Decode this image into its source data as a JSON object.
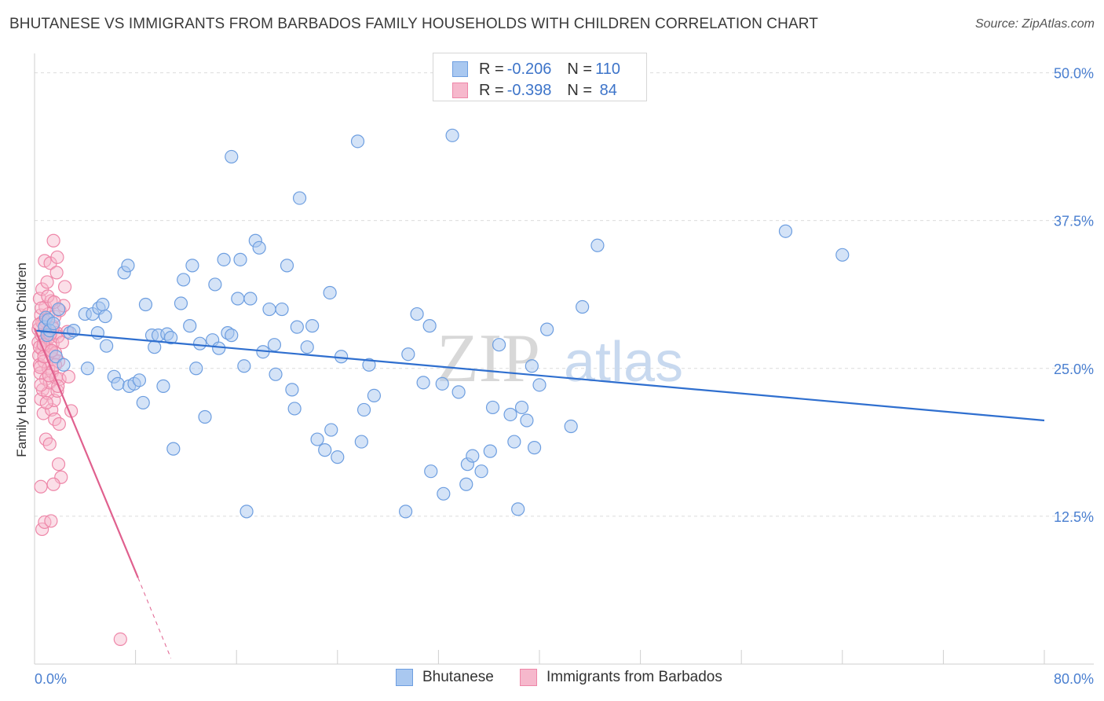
{
  "title": "BHUTANESE VS IMMIGRANTS FROM BARBADOS FAMILY HOUSEHOLDS WITH CHILDREN CORRELATION CHART",
  "source": "Source: ZipAtlas.com",
  "watermark": {
    "zip": "ZIP",
    "atlas": "atlas"
  },
  "colors": {
    "blue_fill": "#a9c8f0",
    "blue_stroke": "#6d9ee0",
    "blue_line": "#2f6fcf",
    "pink_fill": "#f6b8cc",
    "pink_stroke": "#ee86a8",
    "pink_line": "#e0608e",
    "grid": "#dcdcdc",
    "tick_text": "#4a7fd0"
  },
  "legend": {
    "rows": [
      {
        "r_label": "R = ",
        "r_value": "-0.206",
        "n_label": "N = ",
        "n_value": "110"
      },
      {
        "r_label": "R = ",
        "r_value": "-0.398",
        "n_label": "N = ",
        "n_value": " 84"
      }
    ]
  },
  "bottom_legend": {
    "series1": "Bhutanese",
    "series2": "Immigrants from Barbados"
  },
  "chart_data": {
    "type": "scatter",
    "title": "BHUTANESE VS IMMIGRANTS FROM BARBADOS FAMILY HOUSEHOLDS WITH CHILDREN CORRELATION CHART",
    "xlabel": "",
    "ylabel": "Family Households with Children",
    "xlim": [
      0,
      80
    ],
    "ylim": [
      0,
      51.5
    ],
    "x_tick_labels": [
      "0.0%",
      "80.0%"
    ],
    "y_ticks": [
      12.5,
      25.0,
      37.5,
      50.0
    ],
    "y_tick_labels": [
      "12.5%",
      "25.0%",
      "37.5%",
      "50.0%"
    ],
    "grid": "horizontal dashed",
    "series": [
      {
        "name": "Bhutanese",
        "R": -0.206,
        "N": 110,
        "trend": {
          "x0": 0,
          "y0": 28.2,
          "x1": 80,
          "y1": 20.6
        },
        "points": [
          [
            0.8,
            28.5
          ],
          [
            0.9,
            29.3
          ],
          [
            1.0,
            27.8
          ],
          [
            1.1,
            29.1
          ],
          [
            1.2,
            28.2
          ],
          [
            1.5,
            28.8
          ],
          [
            1.7,
            26.0
          ],
          [
            1.9,
            30.0
          ],
          [
            2.3,
            25.3
          ],
          [
            2.8,
            28.0
          ],
          [
            3.1,
            28.2
          ],
          [
            4.0,
            29.6
          ],
          [
            4.6,
            29.6
          ],
          [
            5.1,
            30.1
          ],
          [
            5.4,
            30.4
          ],
          [
            5.6,
            29.4
          ],
          [
            4.2,
            25.0
          ],
          [
            5.0,
            28.0
          ],
          [
            5.7,
            26.9
          ],
          [
            6.3,
            24.3
          ],
          [
            6.6,
            23.7
          ],
          [
            7.1,
            33.1
          ],
          [
            7.4,
            33.7
          ],
          [
            7.5,
            23.5
          ],
          [
            7.9,
            23.7
          ],
          [
            8.3,
            24.0
          ],
          [
            8.6,
            22.1
          ],
          [
            8.8,
            30.4
          ],
          [
            9.3,
            27.8
          ],
          [
            9.5,
            26.8
          ],
          [
            9.8,
            27.8
          ],
          [
            10.2,
            23.5
          ],
          [
            10.5,
            27.9
          ],
          [
            10.8,
            27.6
          ],
          [
            11.0,
            18.2
          ],
          [
            11.6,
            30.5
          ],
          [
            11.8,
            32.5
          ],
          [
            12.3,
            28.6
          ],
          [
            12.5,
            33.7
          ],
          [
            12.8,
            25.0
          ],
          [
            13.1,
            27.1
          ],
          [
            13.5,
            20.9
          ],
          [
            14.1,
            27.4
          ],
          [
            14.3,
            32.1
          ],
          [
            14.6,
            26.7
          ],
          [
            15.0,
            34.2
          ],
          [
            15.3,
            28.0
          ],
          [
            15.6,
            27.8
          ],
          [
            15.6,
            42.9
          ],
          [
            16.1,
            30.9
          ],
          [
            16.3,
            34.2
          ],
          [
            16.6,
            25.2
          ],
          [
            16.8,
            12.9
          ],
          [
            17.1,
            30.9
          ],
          [
            17.5,
            35.8
          ],
          [
            17.8,
            35.2
          ],
          [
            18.1,
            26.4
          ],
          [
            18.6,
            30.0
          ],
          [
            19.0,
            27.0
          ],
          [
            19.1,
            24.5
          ],
          [
            19.6,
            30.0
          ],
          [
            20.0,
            33.7
          ],
          [
            20.4,
            23.2
          ],
          [
            20.6,
            21.6
          ],
          [
            20.8,
            28.5
          ],
          [
            21.0,
            39.4
          ],
          [
            21.6,
            26.8
          ],
          [
            22.0,
            28.6
          ],
          [
            22.4,
            19.0
          ],
          [
            23.0,
            18.1
          ],
          [
            23.4,
            31.4
          ],
          [
            23.5,
            19.8
          ],
          [
            24.0,
            17.5
          ],
          [
            24.3,
            26.0
          ],
          [
            25.6,
            44.2
          ],
          [
            25.9,
            18.8
          ],
          [
            26.1,
            21.5
          ],
          [
            26.5,
            25.3
          ],
          [
            26.9,
            22.7
          ],
          [
            29.4,
            12.9
          ],
          [
            29.6,
            26.2
          ],
          [
            30.3,
            29.6
          ],
          [
            30.8,
            23.8
          ],
          [
            31.3,
            28.6
          ],
          [
            31.4,
            16.3
          ],
          [
            32.3,
            23.7
          ],
          [
            32.4,
            14.4
          ],
          [
            33.1,
            44.7
          ],
          [
            33.6,
            23.0
          ],
          [
            34.2,
            15.2
          ],
          [
            34.3,
            16.9
          ],
          [
            34.7,
            17.6
          ],
          [
            35.4,
            16.3
          ],
          [
            36.1,
            18.0
          ],
          [
            36.3,
            21.7
          ],
          [
            36.8,
            27.0
          ],
          [
            37.7,
            21.1
          ],
          [
            38.0,
            18.8
          ],
          [
            38.3,
            13.1
          ],
          [
            38.6,
            21.7
          ],
          [
            39.0,
            20.6
          ],
          [
            39.4,
            25.2
          ],
          [
            39.6,
            18.3
          ],
          [
            40.0,
            23.6
          ],
          [
            40.6,
            28.3
          ],
          [
            42.5,
            20.1
          ],
          [
            43.4,
            30.2
          ],
          [
            44.6,
            35.4
          ],
          [
            59.5,
            36.6
          ],
          [
            64.0,
            34.6
          ]
        ]
      },
      {
        "name": "Immigrants from Barbados",
        "R": -0.398,
        "N": 84,
        "trend": {
          "x0": 0,
          "y0": 28.4,
          "x1": 8.2,
          "y1": 7.3
        },
        "trend_dashed_extension": {
          "x0": 8.2,
          "y0": 7.3,
          "x1": 10.8,
          "y1": 0.5
        },
        "points": [
          [
            0.3,
            28.3
          ],
          [
            0.3,
            27.2
          ],
          [
            0.35,
            26.1
          ],
          [
            0.4,
            25.3
          ],
          [
            0.4,
            30.9
          ],
          [
            0.45,
            24.6
          ],
          [
            0.5,
            29.5
          ],
          [
            0.5,
            22.4
          ],
          [
            0.55,
            27.8
          ],
          [
            0.6,
            26.6
          ],
          [
            0.6,
            31.7
          ],
          [
            0.65,
            23.2
          ],
          [
            0.7,
            28.8
          ],
          [
            0.7,
            21.2
          ],
          [
            0.75,
            25.6
          ],
          [
            0.8,
            27.4
          ],
          [
            0.8,
            34.1
          ],
          [
            0.85,
            30.2
          ],
          [
            0.9,
            24.1
          ],
          [
            0.9,
            19.0
          ],
          [
            0.95,
            26.9
          ],
          [
            1.0,
            28.1
          ],
          [
            1.0,
            32.3
          ],
          [
            1.05,
            22.9
          ],
          [
            1.1,
            25.0
          ],
          [
            1.1,
            29.6
          ],
          [
            1.15,
            27.6
          ],
          [
            1.2,
            23.8
          ],
          [
            1.2,
            18.6
          ],
          [
            1.25,
            33.9
          ],
          [
            1.3,
            26.4
          ],
          [
            1.3,
            30.7
          ],
          [
            1.35,
            21.5
          ],
          [
            1.4,
            24.7
          ],
          [
            1.4,
            28.6
          ],
          [
            1.45,
            27.1
          ],
          [
            1.5,
            25.8
          ],
          [
            1.5,
            35.8
          ],
          [
            1.55,
            22.3
          ],
          [
            1.6,
            29.4
          ],
          [
            1.6,
            20.7
          ],
          [
            1.65,
            26.3
          ],
          [
            1.7,
            24.2
          ],
          [
            1.75,
            28.0
          ],
          [
            1.8,
            23.1
          ],
          [
            1.8,
            34.4
          ],
          [
            1.85,
            27.7
          ],
          [
            1.9,
            25.6
          ],
          [
            1.9,
            16.9
          ],
          [
            1.95,
            20.3
          ],
          [
            2.0,
            29.9
          ],
          [
            2.0,
            24.1
          ],
          [
            2.1,
            15.8
          ],
          [
            2.2,
            27.2
          ],
          [
            2.3,
            30.3
          ],
          [
            2.4,
            31.9
          ],
          [
            2.6,
            28.1
          ],
          [
            2.7,
            24.3
          ],
          [
            2.9,
            21.4
          ],
          [
            0.5,
            15.0
          ],
          [
            0.6,
            11.4
          ],
          [
            0.8,
            12.0
          ],
          [
            1.3,
            12.1
          ],
          [
            1.5,
            15.2
          ],
          [
            6.8,
            2.1
          ],
          [
            0.4,
            26.8
          ],
          [
            0.45,
            25.1
          ],
          [
            0.5,
            23.6
          ],
          [
            0.55,
            30.1
          ],
          [
            0.6,
            28.9
          ],
          [
            0.7,
            27.0
          ],
          [
            0.75,
            26.0
          ],
          [
            0.85,
            29.0
          ],
          [
            0.95,
            22.1
          ],
          [
            1.05,
            31.1
          ],
          [
            1.15,
            24.4
          ],
          [
            1.25,
            27.9
          ],
          [
            1.35,
            26.5
          ],
          [
            1.45,
            28.4
          ],
          [
            1.55,
            30.6
          ],
          [
            1.65,
            25.3
          ],
          [
            1.75,
            33.1
          ],
          [
            1.85,
            23.5
          ],
          [
            0.35,
            28.7
          ]
        ]
      }
    ]
  }
}
